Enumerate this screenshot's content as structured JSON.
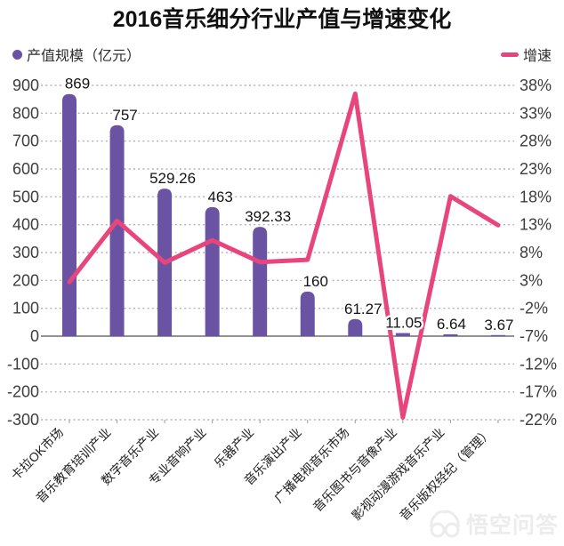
{
  "legend": {
    "bar_label": "产值规模（亿元）",
    "line_label": "增速"
  },
  "watermark": {
    "text": "悟空问答",
    "icon": "wukong-monkey-logo"
  },
  "colors": {
    "bar": "#6a53a3",
    "line": "#e8457c",
    "grid": "#b3b3b3",
    "zero_line": "#6f6f6f",
    "axis_text": "#3d3d3d",
    "data_label_text": "#141414",
    "category_text": "#1c1c1c",
    "title_text": "#111111",
    "watermark_gray": "#ececec"
  },
  "chart_data": {
    "type": "bar+line combo",
    "title": "2016音乐细分行业产值与增速变化",
    "categories": [
      "卡拉OK市场",
      "音乐教育培训产业",
      "数字音乐产业",
      "专业音响产业",
      "乐器产业",
      "音乐演出产业",
      "广播电视音乐市场",
      "音乐图书与音像产业",
      "影视动漫游戏音乐产业",
      "音乐版权经纪（管理）"
    ],
    "series": [
      {
        "name": "产值规模（亿元）",
        "type": "bar",
        "y_axis": "left",
        "values": [
          869,
          757,
          529.26,
          463,
          392.33,
          160,
          61.27,
          11.05,
          6.64,
          3.67
        ],
        "data_labels": [
          "869",
          "757",
          "529.26",
          "463",
          "392.33",
          "160",
          "61.27",
          "11.05",
          "6.64",
          "3.67"
        ]
      },
      {
        "name": "增速",
        "type": "line",
        "y_axis": "right",
        "values_percent": [
          2.7,
          13.7,
          6.2,
          10.2,
          6.3,
          6.7,
          36.5,
          -21.6,
          18.1,
          12.9
        ]
      }
    ],
    "left_axis": {
      "ticks": [
        900,
        800,
        700,
        600,
        500,
        400,
        300,
        200,
        100,
        0,
        -100,
        -200,
        -300
      ],
      "max": 900,
      "min": -300
    },
    "right_axis": {
      "ticks_percent": [
        38,
        33,
        28,
        23,
        18,
        13,
        8,
        3,
        -2,
        -7,
        -12,
        -17,
        -22
      ],
      "max": 38,
      "min": -22
    },
    "axis_alignment": "left value 0 aligns with right -7%; 100 left units = 5%",
    "grid": "horizontal dashed, solid zero line",
    "legend_position": "top"
  }
}
